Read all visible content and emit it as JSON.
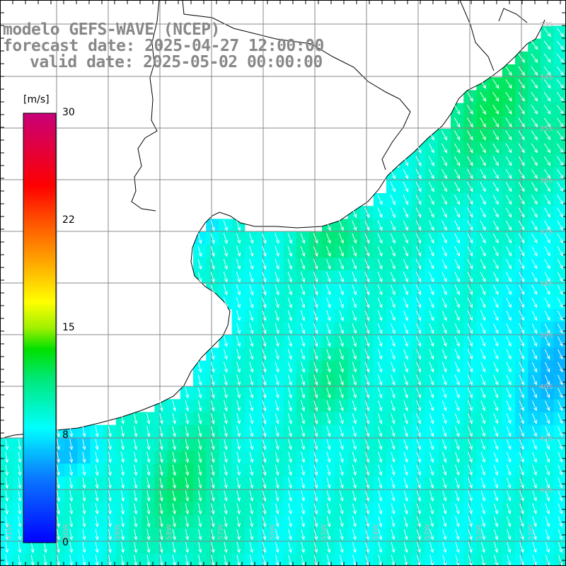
{
  "title": {
    "model": "modelo GEFS-WAVE (NCEP)",
    "forecast_date": "forecast date: 2025-04-27 12:00:00",
    "valid_date": "valid date: 2025-05-02 00:00:00"
  },
  "colorbar": {
    "unit": "[m/s]",
    "min": 0,
    "max": 30,
    "tick_labels": [
      "30",
      "22",
      "15",
      "8",
      "0"
    ],
    "tick_values": [
      30,
      22,
      15,
      8,
      0
    ]
  },
  "map_labels": {
    "latitudes": [
      "33S",
      "34S",
      "35S",
      "36S",
      "37S",
      "38S",
      "39S",
      "40S",
      "41S",
      "42S"
    ],
    "longitudes": [
      "61W",
      "60W",
      "59W",
      "58W",
      "57W",
      "56W",
      "55W",
      "54W",
      "53W",
      "52W",
      "51W"
    ]
  },
  "colors": {
    "land": "#ffffff",
    "coastline": "#000000",
    "grid": "#888888",
    "arrow": "#ffffff"
  }
}
